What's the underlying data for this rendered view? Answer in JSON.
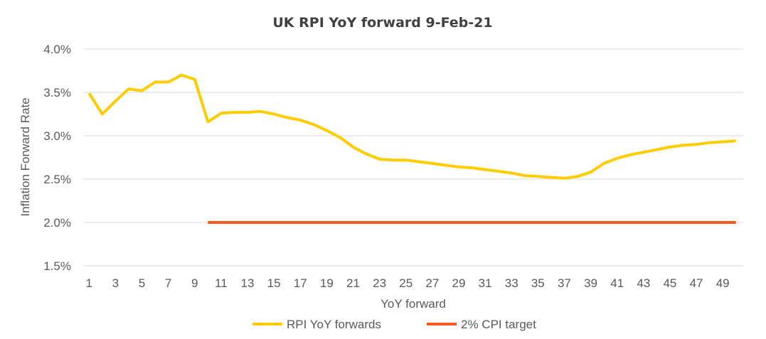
{
  "chart_data": {
    "type": "line",
    "title": "UK RPI YoY forward 9-Feb-21",
    "xlabel": "YoY forward",
    "ylabel": "Inflation Forward Rate",
    "x": [
      1,
      2,
      3,
      4,
      5,
      6,
      7,
      8,
      9,
      10,
      11,
      12,
      13,
      14,
      15,
      16,
      17,
      18,
      19,
      20,
      21,
      22,
      23,
      24,
      25,
      26,
      27,
      28,
      29,
      30,
      31,
      32,
      33,
      34,
      35,
      36,
      37,
      38,
      39,
      40,
      41,
      42,
      43,
      44,
      45,
      46,
      47,
      48,
      49,
      50
    ],
    "x_tick_labels": [
      "1",
      "3",
      "5",
      "7",
      "9",
      "11",
      "13",
      "15",
      "17",
      "19",
      "21",
      "23",
      "25",
      "27",
      "29",
      "31",
      "33",
      "35",
      "37",
      "39",
      "41",
      "43",
      "45",
      "47",
      "49"
    ],
    "ylim": [
      1.5,
      4.0
    ],
    "y_tick_labels": [
      "1.5%",
      "2.0%",
      "2.5%",
      "3.0%",
      "3.5%",
      "4.0%"
    ],
    "grid": true,
    "legend_position": "bottom",
    "series": [
      {
        "name": "RPI YoY forwards",
        "color": "#FFCC00",
        "values": [
          3.49,
          3.25,
          3.4,
          3.54,
          3.52,
          3.62,
          3.62,
          3.7,
          3.65,
          3.16,
          3.26,
          3.27,
          3.27,
          3.28,
          3.25,
          3.21,
          3.18,
          3.13,
          3.06,
          2.98,
          2.87,
          2.79,
          2.73,
          2.72,
          2.72,
          2.7,
          2.68,
          2.66,
          2.64,
          2.63,
          2.61,
          2.59,
          2.57,
          2.54,
          2.53,
          2.52,
          2.51,
          2.53,
          2.58,
          2.68,
          2.74,
          2.78,
          2.81,
          2.84,
          2.87,
          2.89,
          2.9,
          2.92,
          2.93,
          2.94
        ]
      },
      {
        "name": "2% CPI target",
        "color": "#F15A24",
        "values": [
          null,
          null,
          null,
          null,
          null,
          null,
          null,
          null,
          null,
          2.0,
          2.0,
          2.0,
          2.0,
          2.0,
          2.0,
          2.0,
          2.0,
          2.0,
          2.0,
          2.0,
          2.0,
          2.0,
          2.0,
          2.0,
          2.0,
          2.0,
          2.0,
          2.0,
          2.0,
          2.0,
          2.0,
          2.0,
          2.0,
          2.0,
          2.0,
          2.0,
          2.0,
          2.0,
          2.0,
          2.0,
          2.0,
          2.0,
          2.0,
          2.0,
          2.0,
          2.0,
          2.0,
          2.0,
          2.0,
          2.0
        ]
      }
    ]
  }
}
